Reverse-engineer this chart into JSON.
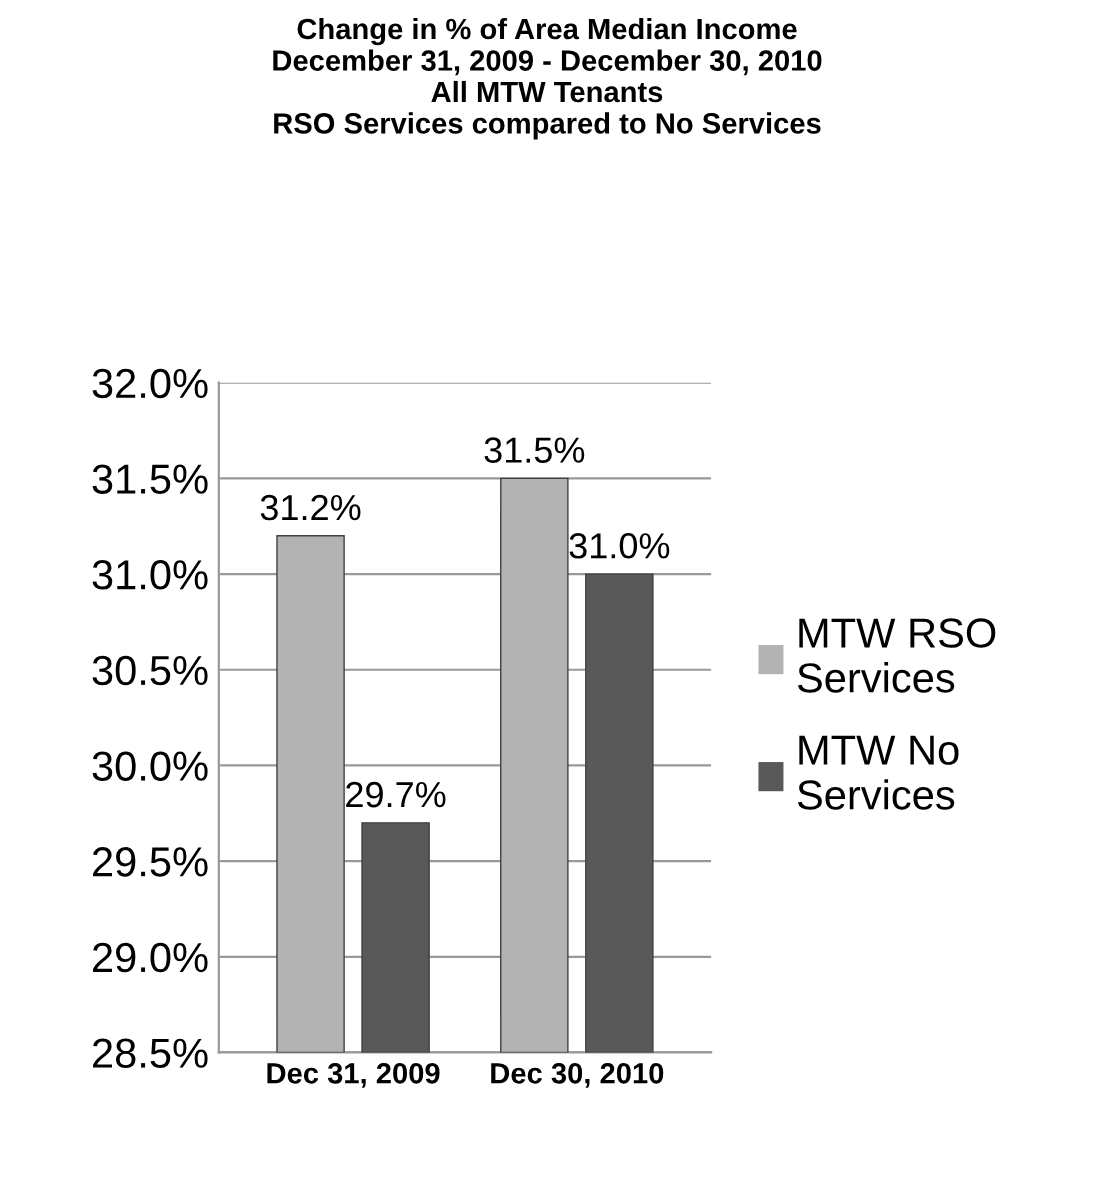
{
  "chart_data": {
    "type": "bar",
    "title": "Change in % of Area Median Income\nDecember 31, 2009 - December 30, 2010\nAll MTW Tenants\nRSO Services compared to No Services",
    "categories": [
      "Dec 31, 2009",
      "Dec 30, 2010"
    ],
    "series": [
      {
        "name": "MTW RSO\nServices",
        "color": "#b3b3b3",
        "values": [
          31.2,
          31.5
        ],
        "value_labels": [
          "31.2%",
          "31.5%"
        ]
      },
      {
        "name": "MTW No\nServices",
        "color": "#595959",
        "values": [
          29.7,
          31.0
        ],
        "value_labels": [
          "29.7%",
          "31.0%"
        ]
      }
    ],
    "ylim": [
      28.5,
      32.0
    ],
    "yticks": [
      {
        "value": 28.5,
        "label": "28.5%"
      },
      {
        "value": 29.0,
        "label": "29.0%"
      },
      {
        "value": 29.5,
        "label": "29.5%"
      },
      {
        "value": 30.0,
        "label": "30.0%"
      },
      {
        "value": 30.5,
        "label": "30.5%"
      },
      {
        "value": 31.0,
        "label": "31.0%"
      },
      {
        "value": 31.5,
        "label": "31.5%"
      },
      {
        "value": 32.0,
        "label": "32.0%"
      }
    ],
    "grid": "y",
    "legend": "right"
  }
}
